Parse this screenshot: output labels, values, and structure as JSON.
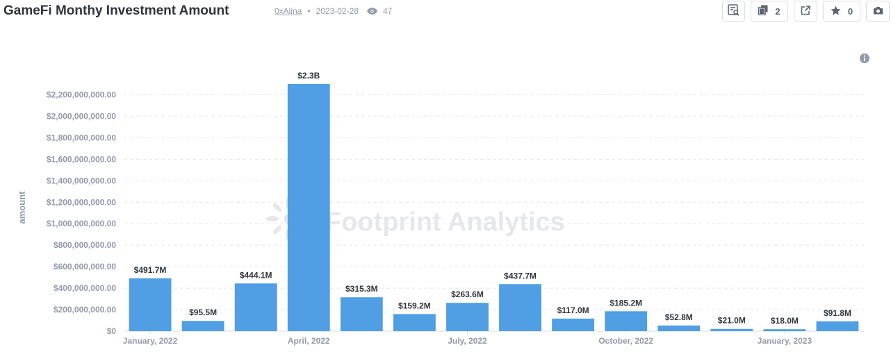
{
  "header": {
    "title": "GameFi Monthy Investment Amount",
    "author": "0xAlina",
    "date": "2023-02-28",
    "views": "47"
  },
  "toolbar": {
    "copies_count": "2",
    "stars_count": "0"
  },
  "watermark": "Footprint Analytics",
  "chart_data": {
    "type": "bar",
    "ylabel": "amount",
    "xlabel": "",
    "ylim": [
      0,
      2300000000
    ],
    "ytick_values": [
      0,
      200000000,
      400000000,
      600000000,
      800000000,
      1000000000,
      1200000000,
      1400000000,
      1600000000,
      1800000000,
      2000000000,
      2200000000
    ],
    "yticks": [
      "$0",
      "$200,000,000.00",
      "$400,000,000.00",
      "$600,000,000.00",
      "$800,000,000.00",
      "$1,000,000,000.00",
      "$1,200,000,000.00",
      "$1,400,000,000.00",
      "$1,600,000,000.00",
      "$1,800,000,000.00",
      "$2,000,000,000.00",
      "$2,200,000,000.00"
    ],
    "categories": [
      "2022-01",
      "2022-02",
      "2022-03",
      "2022-04",
      "2022-05",
      "2022-06",
      "2022-07",
      "2022-08",
      "2022-09",
      "2022-10",
      "2022-11",
      "2022-12",
      "2023-01",
      "2023-02"
    ],
    "xtick_labels": [
      {
        "index": 0,
        "label": "January, 2022"
      },
      {
        "index": 3,
        "label": "April, 2022"
      },
      {
        "index": 6,
        "label": "July, 2022"
      },
      {
        "index": 9,
        "label": "October, 2022"
      },
      {
        "index": 12,
        "label": "January, 2023"
      }
    ],
    "values": [
      491700000,
      95500000,
      444100000,
      2300000000,
      315300000,
      159200000,
      263600000,
      437700000,
      117000000,
      185200000,
      52800000,
      21000000,
      18000000,
      91800000
    ],
    "data_labels": [
      "$491.7M",
      "$95.5M",
      "$444.1M",
      "$2.3B",
      "$315.3M",
      "$159.2M",
      "$263.6M",
      "$437.7M",
      "$117.0M",
      "$185.2M",
      "$52.8M",
      "$21.0M",
      "$18.0M",
      "$91.8M"
    ],
    "bar_color": "#509ee3",
    "grid": true,
    "legend": "none"
  }
}
